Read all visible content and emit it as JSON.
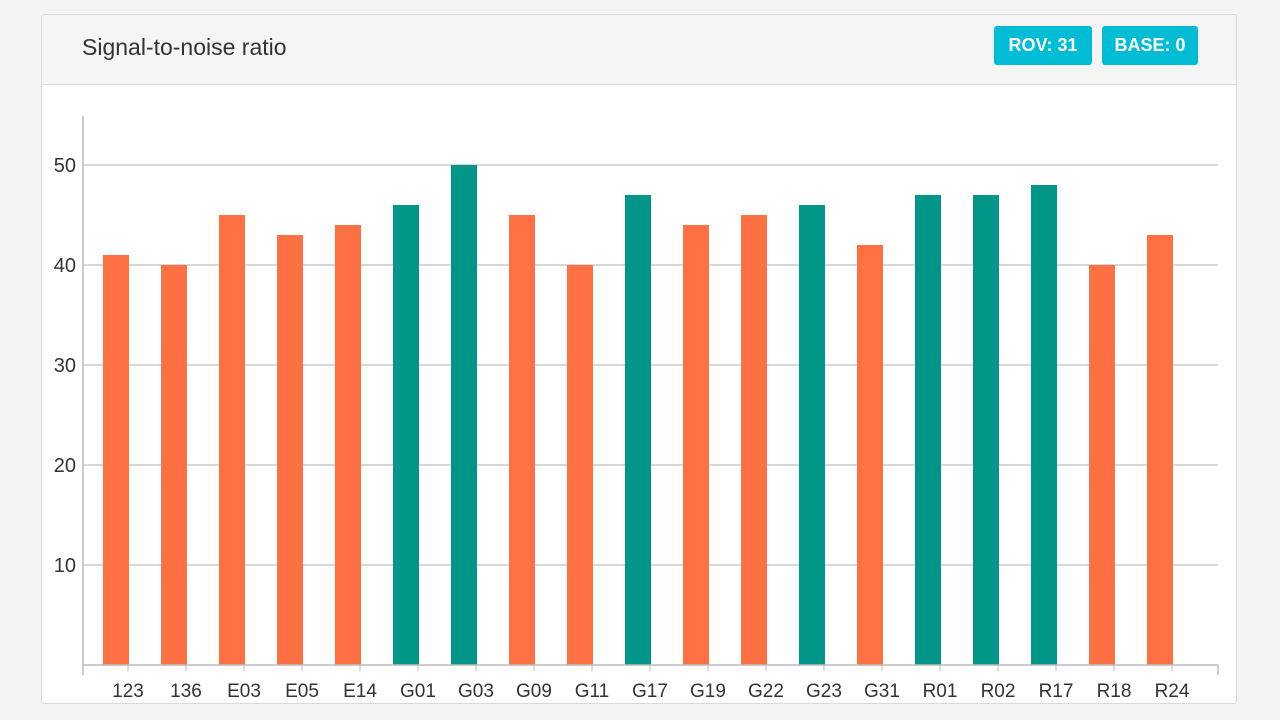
{
  "panel": {
    "title": "Signal-to-noise ratio",
    "badges": [
      {
        "label": "ROV: 31",
        "color": "#00bcd4"
      },
      {
        "label": "BASE: 0",
        "color": "#00bcd4"
      }
    ]
  },
  "colors": {
    "orange": "#ff7043",
    "teal": "#009688",
    "grid": "#cccccc",
    "axis": "#bbbbbb"
  },
  "chart_data": {
    "type": "bar",
    "title": "",
    "xlabel": "",
    "ylabel": "",
    "ylim": [
      0,
      55
    ],
    "yticks": [
      10,
      20,
      30,
      40,
      50
    ],
    "grid": true,
    "categories": [
      "123",
      "136",
      "E03",
      "E05",
      "E14",
      "G01",
      "G03",
      "G09",
      "G11",
      "G17",
      "G19",
      "G22",
      "G23",
      "G31",
      "R01",
      "R02",
      "R17",
      "R18",
      "R24"
    ],
    "values": [
      41,
      40,
      45,
      43,
      44,
      46,
      50,
      45,
      40,
      47,
      44,
      45,
      46,
      42,
      47,
      47,
      48,
      40,
      43
    ],
    "bar_colors": [
      "orange",
      "orange",
      "orange",
      "orange",
      "orange",
      "teal",
      "teal",
      "orange",
      "orange",
      "teal",
      "orange",
      "orange",
      "teal",
      "orange",
      "teal",
      "teal",
      "teal",
      "orange",
      "orange"
    ]
  }
}
